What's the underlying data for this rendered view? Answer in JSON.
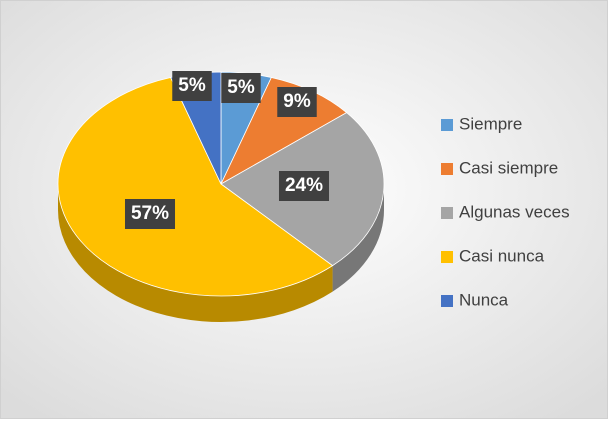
{
  "chart_data": {
    "type": "pie3d",
    "categories": [
      "Siempre",
      "Casi siempre",
      "Algunas veces",
      "Casi nunca",
      "Nunca"
    ],
    "values": [
      5,
      9,
      24,
      57,
      5
    ],
    "value_labels": [
      "5%",
      "9%",
      "24%",
      "57%",
      "5%"
    ],
    "colors": [
      "#5b9bd5",
      "#ed7d31",
      "#a5a5a5",
      "#ffc000",
      "#4472c4"
    ],
    "legend": "right"
  }
}
